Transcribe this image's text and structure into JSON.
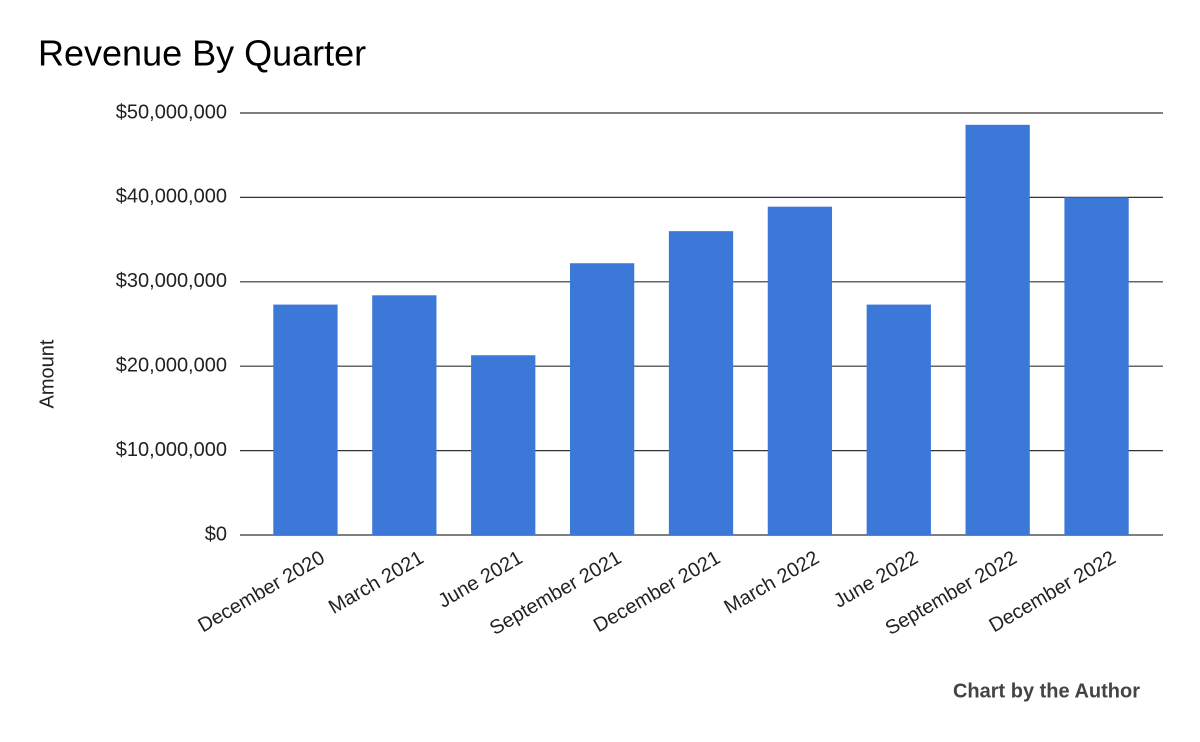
{
  "chart_data": {
    "type": "bar",
    "title": "Revenue By Quarter",
    "y_label": "Amount",
    "footer": "Chart by the Author",
    "categories": [
      "December 2020",
      "March 2021",
      "June 2021",
      "September 2021",
      "December 2021",
      "March 2022",
      "June 2022",
      "September 2022",
      "December 2022"
    ],
    "values": [
      27300000,
      28400000,
      21300000,
      32200000,
      36000000,
      38900000,
      27300000,
      48600000,
      40000000
    ],
    "color": "#3c78d8",
    "ylim": [
      0,
      50000000
    ],
    "yticks": [
      {
        "value": 0,
        "label": "$0"
      },
      {
        "value": 10000000,
        "label": "$10,000,000"
      },
      {
        "value": 20000000,
        "label": "$20,000,000"
      },
      {
        "value": 30000000,
        "label": "$30,000,000"
      },
      {
        "value": 40000000,
        "label": "$40,000,000"
      },
      {
        "value": 50000000,
        "label": "$50,000,000"
      }
    ],
    "grid": true
  }
}
